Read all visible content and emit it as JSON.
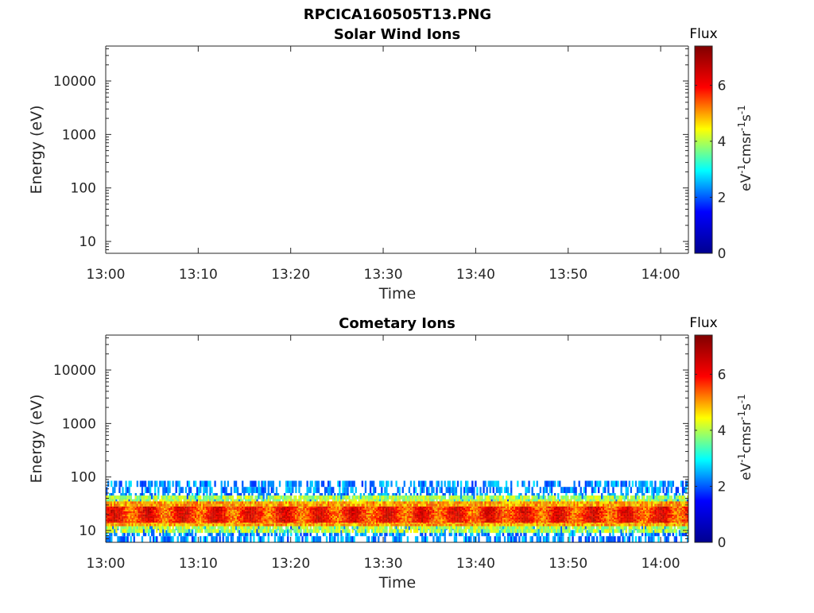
{
  "figure_title": "RPCICA160505T13.PNG",
  "colors": {
    "axis": "#262626",
    "colormap": [
      "#00008f",
      "#0000ff",
      "#00ffff",
      "#ffff00",
      "#ff0000",
      "#800000"
    ]
  },
  "chart_data": [
    {
      "type": "heatmap",
      "title": "Solar Wind Ions",
      "xlabel": "Time",
      "ylabel": "Energy (eV)",
      "x_ticks": [
        "13:00",
        "13:10",
        "13:20",
        "13:30",
        "13:40",
        "13:50",
        "14:00"
      ],
      "x_tick_minutes": [
        0,
        10,
        20,
        30,
        40,
        50,
        60
      ],
      "xlim_minutes": [
        0,
        63
      ],
      "yscale": "log",
      "y_ticks": [
        10,
        100,
        1000,
        10000
      ],
      "y_tick_labels": [
        "10",
        "100",
        "1000",
        "10000"
      ],
      "ylim": [
        6,
        45000
      ],
      "colorbar": {
        "title": "Flux",
        "label": "eV-1cm-2sr-1s-1",
        "ticks": [
          0,
          2,
          4,
          6
        ],
        "range": [
          0,
          7.4
        ]
      },
      "bands": []
    },
    {
      "type": "heatmap",
      "title": "Cometary Ions",
      "xlabel": "Time",
      "ylabel": "Energy (eV)",
      "x_ticks": [
        "13:00",
        "13:10",
        "13:20",
        "13:30",
        "13:40",
        "13:50",
        "14:00"
      ],
      "x_tick_minutes": [
        0,
        10,
        20,
        30,
        40,
        50,
        60
      ],
      "xlim_minutes": [
        0,
        63
      ],
      "yscale": "log",
      "y_ticks": [
        10,
        100,
        1000,
        10000
      ],
      "y_tick_labels": [
        "10",
        "100",
        "1000",
        "10000"
      ],
      "ylim": [
        6,
        45000
      ],
      "colorbar": {
        "title": "Flux",
        "label": "eV-1cm-2sr-1s-1",
        "ticks": [
          0,
          2,
          4,
          6
        ],
        "range": [
          0,
          7.4
        ]
      },
      "bands": [
        {
          "energy_min": 6,
          "energy_max": 85,
          "flux": 2.3,
          "t_start": 0,
          "t_end": 63
        },
        {
          "energy_min": 9,
          "energy_max": 45,
          "flux": 4.0,
          "t_start": 0,
          "t_end": 63
        },
        {
          "energy_min": 12,
          "energy_max": 35,
          "flux": 5.0,
          "t_start": 0,
          "t_end": 63
        },
        {
          "energy_min": 14,
          "energy_max": 28,
          "flux": 5.8,
          "t_start": 0,
          "t_end": 63
        }
      ]
    }
  ]
}
